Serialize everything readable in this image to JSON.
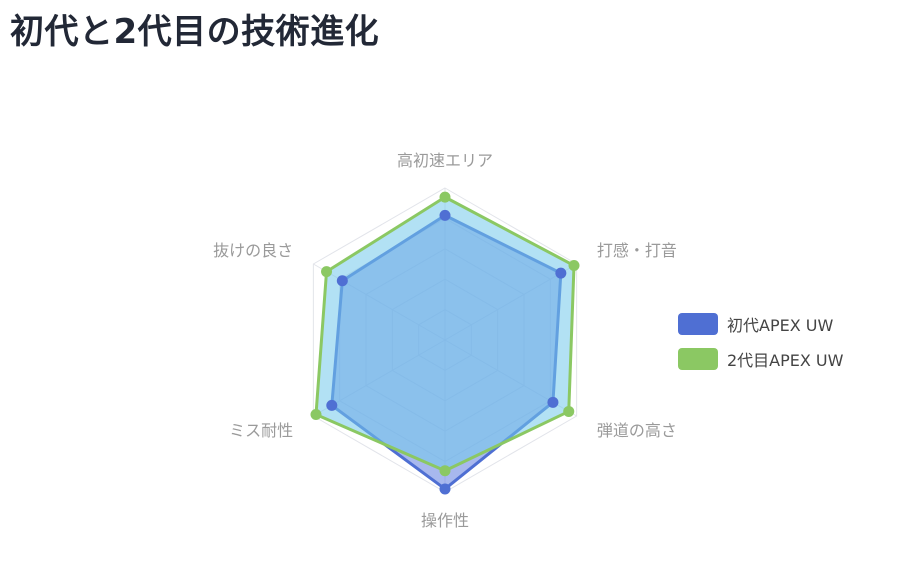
{
  "page": {
    "title": "初代と2代目の技術進化"
  },
  "chart_data": {
    "type": "radar",
    "axes": [
      "高初速エリア",
      "打感・打音",
      "弾道の高さ",
      "操作性",
      "ミス耐性",
      "抜けの良さ"
    ],
    "scale": {
      "min": 0,
      "max": 10,
      "steps": 5
    },
    "grid": true,
    "legend_position": "right",
    "series": [
      {
        "name": "初代APEX UW",
        "values": [
          8.2,
          8.8,
          8.2,
          9.8,
          8.6,
          7.8
        ],
        "color": "#4f6fd3",
        "fill": "rgba(96,125,224,0.55)"
      },
      {
        "name": "2代目APEX UW",
        "values": [
          9.4,
          9.8,
          9.4,
          8.6,
          9.8,
          9.0
        ],
        "color": "#8bc863",
        "fill": "rgba(115,200,235,0.55)"
      }
    ]
  }
}
